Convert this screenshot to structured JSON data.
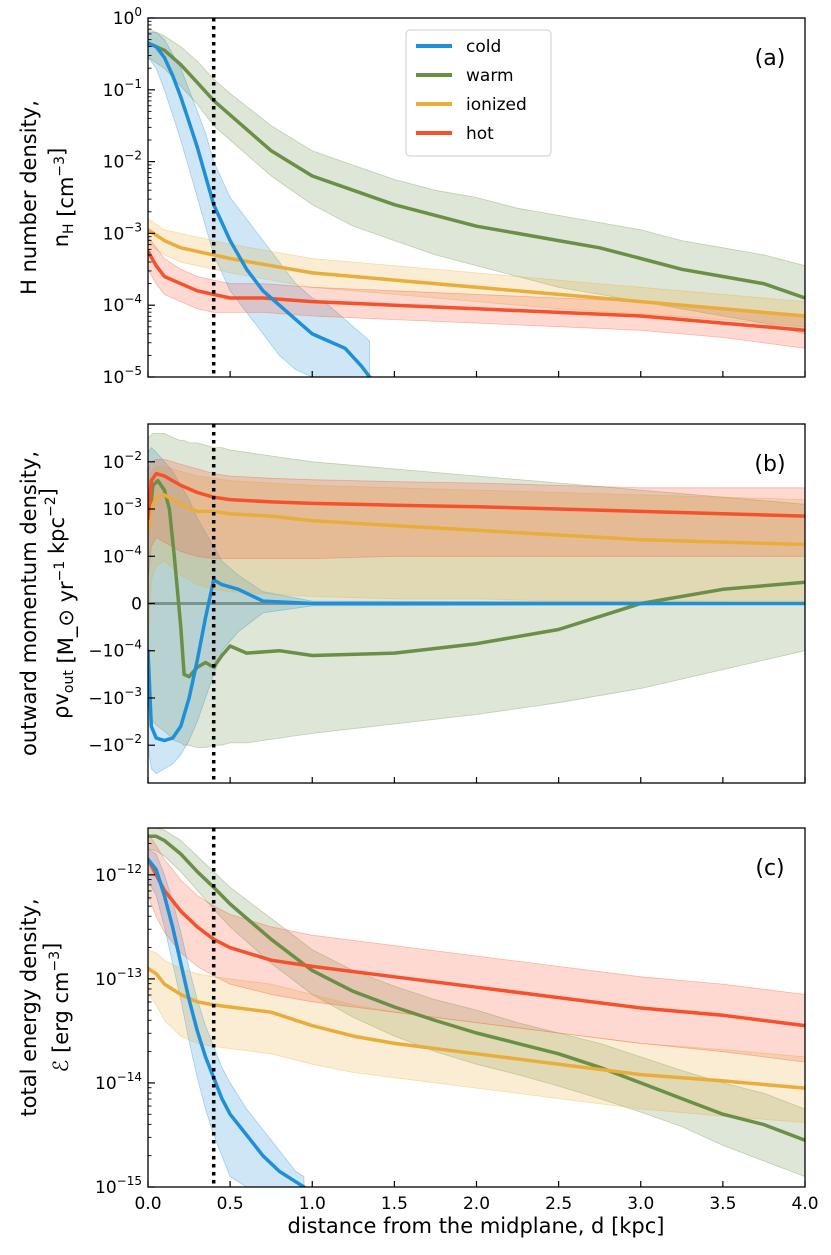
{
  "colors": {
    "cold": "#1f8fd8",
    "warm": "#6b8f47",
    "ionized": "#e8ad3a",
    "hot": "#f4512c",
    "zero_line": "#999999"
  },
  "legend": [
    {
      "key": "cold",
      "label": "cold"
    },
    {
      "key": "warm",
      "label": "warm"
    },
    {
      "key": "ionized",
      "label": "ionized"
    },
    {
      "key": "hot",
      "label": "hot"
    }
  ],
  "xaxis": {
    "label": "distance from the midplane, d [kpc]",
    "ticks": [
      "0.0",
      "0.5",
      "1.0",
      "1.5",
      "2.0",
      "2.5",
      "3.0",
      "3.5",
      "4.0"
    ],
    "range": [
      0,
      4
    ]
  },
  "marker_line_x": 0.4,
  "chart_data": [
    {
      "id": "a",
      "type": "line",
      "panel_label": "(a)",
      "yscale": "log",
      "ylim_log10": [
        -5,
        0
      ],
      "ylabel_line1": "H number density,",
      "ylabel_line2": "n_H [cm^-3]",
      "ytick_exponents": [
        0,
        -1,
        -2,
        -3,
        -4,
        -5
      ],
      "series": [
        {
          "name": "cold",
          "x": [
            0,
            0.05,
            0.1,
            0.15,
            0.2,
            0.25,
            0.3,
            0.35,
            0.4,
            0.5,
            0.6,
            0.7,
            0.8,
            0.9,
            1.0,
            1.1,
            1.2,
            1.3,
            1.35
          ],
          "log10": [
            -0.35,
            -0.4,
            -0.55,
            -0.8,
            -1.1,
            -1.45,
            -1.8,
            -2.2,
            -2.6,
            -3.1,
            -3.5,
            -3.8,
            -4.0,
            -4.2,
            -4.4,
            -4.5,
            -4.6,
            -4.85,
            -5.0
          ],
          "lo": [
            -0.55,
            -0.7,
            -1.0,
            -1.35,
            -1.7,
            -2.1,
            -2.5,
            -2.9,
            -3.3,
            -3.8,
            -4.1,
            -4.4,
            -4.7,
            -4.9,
            -5.0,
            -5.0,
            -5.0,
            -5.0,
            -5.0
          ],
          "hi": [
            -0.2,
            -0.2,
            -0.3,
            -0.5,
            -0.7,
            -1.0,
            -1.3,
            -1.6,
            -2.0,
            -2.5,
            -2.8,
            -3.1,
            -3.4,
            -3.7,
            -3.9,
            -4.0,
            -4.2,
            -4.4,
            -4.5
          ]
        },
        {
          "name": "warm",
          "x": [
            0,
            0.1,
            0.2,
            0.3,
            0.4,
            0.5,
            0.75,
            1.0,
            1.25,
            1.5,
            1.75,
            2.0,
            2.25,
            2.5,
            2.75,
            3.0,
            3.25,
            3.5,
            3.75,
            4.0
          ],
          "log10": [
            -0.35,
            -0.45,
            -0.65,
            -0.9,
            -1.15,
            -1.35,
            -1.85,
            -2.2,
            -2.4,
            -2.6,
            -2.75,
            -2.9,
            -3.0,
            -3.1,
            -3.2,
            -3.35,
            -3.5,
            -3.6,
            -3.7,
            -3.9
          ],
          "lo": [
            -0.55,
            -0.7,
            -0.95,
            -1.2,
            -1.5,
            -1.7,
            -2.2,
            -2.6,
            -2.9,
            -3.1,
            -3.3,
            -3.45,
            -3.6,
            -3.75,
            -3.85,
            -3.95,
            -4.05,
            -4.15,
            -4.25,
            -4.4
          ],
          "hi": [
            -0.15,
            -0.25,
            -0.4,
            -0.6,
            -0.85,
            -1.05,
            -1.5,
            -1.85,
            -2.05,
            -2.25,
            -2.4,
            -2.5,
            -2.65,
            -2.75,
            -2.85,
            -2.95,
            -3.1,
            -3.2,
            -3.3,
            -3.45
          ]
        },
        {
          "name": "ionized",
          "x": [
            0,
            0.1,
            0.2,
            0.3,
            0.4,
            0.5,
            0.75,
            1.0,
            1.5,
            2.0,
            2.5,
            3.0,
            3.5,
            4.0
          ],
          "log10": [
            -2.95,
            -3.1,
            -3.2,
            -3.25,
            -3.3,
            -3.35,
            -3.45,
            -3.55,
            -3.65,
            -3.75,
            -3.85,
            -3.95,
            -4.05,
            -4.15
          ],
          "lo": [
            -3.15,
            -3.3,
            -3.4,
            -3.45,
            -3.5,
            -3.55,
            -3.65,
            -3.75,
            -3.85,
            -3.95,
            -4.05,
            -4.12,
            -4.2,
            -4.3
          ],
          "hi": [
            -2.8,
            -2.95,
            -3.0,
            -3.05,
            -3.1,
            -3.15,
            -3.25,
            -3.35,
            -3.45,
            -3.55,
            -3.65,
            -3.75,
            -3.85,
            -3.95
          ]
        },
        {
          "name": "hot",
          "x": [
            0,
            0.05,
            0.1,
            0.2,
            0.3,
            0.4,
            0.5,
            0.7,
            1.0,
            1.5,
            2.0,
            2.5,
            3.0,
            3.5,
            4.0
          ],
          "log10": [
            -3.25,
            -3.45,
            -3.6,
            -3.7,
            -3.8,
            -3.85,
            -3.9,
            -3.9,
            -3.95,
            -4.0,
            -4.05,
            -4.1,
            -4.15,
            -4.25,
            -4.35
          ],
          "lo": [
            -3.5,
            -3.7,
            -3.85,
            -3.95,
            -4.05,
            -4.1,
            -4.1,
            -4.1,
            -4.15,
            -4.2,
            -4.25,
            -4.3,
            -4.35,
            -4.45,
            -4.6
          ],
          "hi": [
            -3.05,
            -3.2,
            -3.35,
            -3.5,
            -3.6,
            -3.65,
            -3.7,
            -3.7,
            -3.75,
            -3.8,
            -3.85,
            -3.9,
            -3.95,
            -4.05,
            -4.15
          ]
        }
      ]
    },
    {
      "id": "b",
      "type": "line",
      "panel_label": "(b)",
      "yscale": "symlog",
      "ylim_symlog": [
        -3.8,
        3.8
      ],
      "ylabel_line1": "outward momentum density,",
      "ylabel_line2": "ρv_out [M_⊙ yr^-1 kpc^-2]",
      "ytick_labels": [
        "10^-2",
        "10^-3",
        "10^-4",
        "0",
        "−10^-4",
        "−10^-3",
        "−10^-2"
      ],
      "ytick_values": [
        3,
        2,
        1,
        0,
        -1,
        -2,
        -3
      ],
      "note": "symlog coordinate: 0 at zero, +/-1 at +/-1e-4, +/-2 at +/-1e-3, +/-3 at +/-1e-2",
      "series": [
        {
          "name": "cold",
          "x": [
            0,
            0.02,
            0.05,
            0.1,
            0.15,
            0.2,
            0.25,
            0.3,
            0.35,
            0.4,
            0.45,
            0.55,
            0.7,
            1.0,
            4.0
          ],
          "s": [
            -1.0,
            -2.6,
            -2.85,
            -2.9,
            -2.85,
            -2.6,
            -2.0,
            -1.2,
            -0.3,
            0.5,
            0.4,
            0.3,
            0.05,
            0.0,
            0.0
          ],
          "lo": [
            -3.0,
            -3.5,
            -3.6,
            -3.5,
            -3.4,
            -3.2,
            -2.9,
            -2.5,
            -2.0,
            -1.5,
            -1.0,
            -0.6,
            -0.2,
            -0.05,
            -0.02
          ],
          "hi": [
            3.2,
            3.3,
            3.2,
            3.0,
            2.8,
            2.5,
            2.2,
            1.8,
            1.5,
            1.2,
            0.9,
            0.6,
            0.25,
            0.05,
            0.02
          ]
        },
        {
          "name": "warm",
          "x": [
            0,
            0.03,
            0.06,
            0.1,
            0.13,
            0.16,
            0.2,
            0.22,
            0.25,
            0.3,
            0.35,
            0.4,
            0.45,
            0.5,
            0.6,
            0.8,
            1.0,
            1.5,
            2.0,
            2.5,
            3.0,
            3.5,
            4.0
          ],
          "s": [
            1.5,
            2.5,
            2.6,
            2.4,
            2.0,
            1.0,
            -0.5,
            -1.5,
            -1.55,
            -1.35,
            -1.25,
            -1.35,
            -1.1,
            -0.9,
            -1.05,
            -1.0,
            -1.1,
            -1.05,
            -0.85,
            -0.55,
            0.0,
            0.3,
            0.45
          ],
          "lo": [
            -2.0,
            -2.5,
            -2.6,
            -2.7,
            -2.8,
            -2.9,
            -2.95,
            -3.0,
            -3.0,
            -3.05,
            -3.05,
            -3.0,
            -3.0,
            -2.95,
            -2.95,
            -2.85,
            -2.75,
            -2.55,
            -2.35,
            -2.1,
            -1.8,
            -1.4,
            -1.0
          ],
          "hi": [
            3.5,
            3.6,
            3.6,
            3.6,
            3.55,
            3.5,
            3.45,
            3.45,
            3.4,
            3.4,
            3.35,
            3.3,
            3.3,
            3.25,
            3.2,
            3.1,
            3.0,
            2.85,
            2.7,
            2.55,
            2.4,
            2.25,
            2.1
          ]
        },
        {
          "name": "ionized",
          "x": [
            0,
            0.02,
            0.05,
            0.1,
            0.2,
            0.3,
            0.4,
            0.5,
            0.75,
            1.0,
            1.5,
            2.0,
            2.5,
            3.0,
            3.5,
            4.0
          ],
          "s": [
            1.5,
            2.0,
            2.25,
            2.3,
            2.1,
            1.95,
            1.95,
            1.9,
            1.85,
            1.75,
            1.65,
            1.55,
            1.45,
            1.35,
            1.3,
            1.25
          ],
          "lo": [
            -1.0,
            0.5,
            0.8,
            0.9,
            0.6,
            0.4,
            0.3,
            0.25,
            0.2,
            0.15,
            0.1,
            0.1,
            0.05,
            0.05,
            0.05,
            0.05
          ],
          "hi": [
            2.5,
            2.8,
            2.9,
            2.9,
            2.8,
            2.7,
            2.65,
            2.6,
            2.55,
            2.5,
            2.45,
            2.4,
            2.35,
            2.3,
            2.25,
            2.2
          ]
        },
        {
          "name": "hot",
          "x": [
            0,
            0.02,
            0.05,
            0.1,
            0.2,
            0.3,
            0.4,
            0.5,
            0.75,
            1.0,
            1.5,
            2.0,
            2.5,
            3.0,
            3.5,
            4.0
          ],
          "s": [
            1.8,
            2.6,
            2.75,
            2.7,
            2.5,
            2.35,
            2.25,
            2.2,
            2.15,
            2.12,
            2.08,
            2.05,
            2.0,
            1.95,
            1.9,
            1.85
          ],
          "lo": [
            0.5,
            1.2,
            1.4,
            1.3,
            1.1,
            1.0,
            0.95,
            0.95,
            0.95,
            0.95,
            1.0,
            1.0,
            1.0,
            1.0,
            1.0,
            1.0
          ],
          "hi": [
            2.8,
            3.0,
            3.05,
            3.05,
            2.95,
            2.85,
            2.75,
            2.7,
            2.65,
            2.62,
            2.58,
            2.55,
            2.5,
            2.45,
            2.45,
            2.45
          ]
        }
      ]
    },
    {
      "id": "c",
      "type": "line",
      "panel_label": "(c)",
      "yscale": "log",
      "ylim_log10": [
        -15,
        -11.55
      ],
      "ylabel_line1": "total energy density,",
      "ylabel_line2": "ℰ [erg cm^-3]",
      "ytick_exponents": [
        -12,
        -13,
        -14,
        -15
      ],
      "series": [
        {
          "name": "cold",
          "x": [
            0,
            0.05,
            0.1,
            0.15,
            0.2,
            0.25,
            0.3,
            0.35,
            0.4,
            0.45,
            0.5,
            0.6,
            0.7,
            0.8,
            0.9,
            0.95
          ],
          "log10": [
            -11.85,
            -11.95,
            -12.2,
            -12.5,
            -12.85,
            -13.2,
            -13.5,
            -13.75,
            -13.95,
            -14.15,
            -14.3,
            -14.5,
            -14.7,
            -14.85,
            -14.95,
            -15.0
          ],
          "lo": [
            -12.05,
            -12.2,
            -12.5,
            -12.85,
            -13.2,
            -13.6,
            -13.95,
            -14.25,
            -14.5,
            -14.7,
            -14.9,
            -15.0,
            -15.0,
            -15.0,
            -15.0,
            -15.0
          ],
          "hi": [
            -11.75,
            -11.8,
            -12.0,
            -12.25,
            -12.55,
            -12.9,
            -13.2,
            -13.45,
            -13.65,
            -13.85,
            -14.0,
            -14.25,
            -14.45,
            -14.65,
            -14.85,
            -14.9
          ]
        },
        {
          "name": "warm",
          "x": [
            0,
            0.05,
            0.1,
            0.2,
            0.3,
            0.4,
            0.5,
            0.75,
            1.0,
            1.25,
            1.5,
            1.75,
            2.0,
            2.25,
            2.5,
            2.75,
            3.0,
            3.25,
            3.5,
            3.75,
            4.0
          ],
          "log10": [
            -11.63,
            -11.63,
            -11.67,
            -11.8,
            -11.97,
            -12.12,
            -12.28,
            -12.62,
            -12.92,
            -13.12,
            -13.27,
            -13.4,
            -13.52,
            -13.62,
            -13.72,
            -13.85,
            -14.0,
            -14.15,
            -14.3,
            -14.4,
            -14.55
          ],
          "lo": [
            -11.75,
            -11.77,
            -11.82,
            -11.97,
            -12.15,
            -12.33,
            -12.5,
            -12.85,
            -13.15,
            -13.37,
            -13.55,
            -13.7,
            -13.82,
            -13.92,
            -14.03,
            -14.15,
            -14.28,
            -14.42,
            -14.6,
            -14.75,
            -14.9
          ],
          "hi": [
            -11.55,
            -11.55,
            -11.57,
            -11.67,
            -11.82,
            -11.97,
            -12.12,
            -12.42,
            -12.72,
            -12.92,
            -13.07,
            -13.2,
            -13.3,
            -13.42,
            -13.52,
            -13.62,
            -13.75,
            -13.88,
            -14.0,
            -14.1,
            -14.25
          ]
        },
        {
          "name": "ionized",
          "x": [
            0,
            0.05,
            0.1,
            0.2,
            0.3,
            0.4,
            0.5,
            0.75,
            1.0,
            1.25,
            1.5,
            2.0,
            2.5,
            3.0,
            3.5,
            4.0
          ],
          "log10": [
            -12.9,
            -12.95,
            -13.05,
            -13.15,
            -13.22,
            -13.25,
            -13.27,
            -13.32,
            -13.45,
            -13.55,
            -13.62,
            -13.72,
            -13.82,
            -13.92,
            -13.98,
            -14.05
          ],
          "lo": [
            -13.15,
            -13.25,
            -13.4,
            -13.55,
            -13.62,
            -13.65,
            -13.67,
            -13.72,
            -13.82,
            -13.9,
            -13.95,
            -14.05,
            -14.15,
            -14.25,
            -14.32,
            -14.38
          ],
          "hi": [
            -12.72,
            -12.75,
            -12.82,
            -12.9,
            -12.95,
            -12.98,
            -13.0,
            -13.05,
            -13.15,
            -13.25,
            -13.32,
            -13.42,
            -13.52,
            -13.62,
            -13.68,
            -13.75
          ]
        },
        {
          "name": "hot",
          "x": [
            0,
            0.05,
            0.1,
            0.2,
            0.3,
            0.4,
            0.5,
            0.75,
            1.0,
            1.5,
            2.0,
            2.5,
            3.0,
            3.5,
            4.0
          ],
          "log10": [
            -11.85,
            -12.0,
            -12.15,
            -12.35,
            -12.5,
            -12.62,
            -12.7,
            -12.82,
            -12.88,
            -12.98,
            -13.08,
            -13.18,
            -13.28,
            -13.35,
            -13.45
          ],
          "lo": [
            -12.2,
            -12.4,
            -12.55,
            -12.75,
            -12.88,
            -12.97,
            -13.05,
            -13.15,
            -13.22,
            -13.32,
            -13.42,
            -13.52,
            -13.62,
            -13.7,
            -13.8
          ],
          "hi": [
            -11.6,
            -11.72,
            -11.85,
            -12.05,
            -12.2,
            -12.3,
            -12.38,
            -12.5,
            -12.58,
            -12.68,
            -12.78,
            -12.88,
            -12.98,
            -13.05,
            -13.15
          ]
        }
      ]
    }
  ]
}
